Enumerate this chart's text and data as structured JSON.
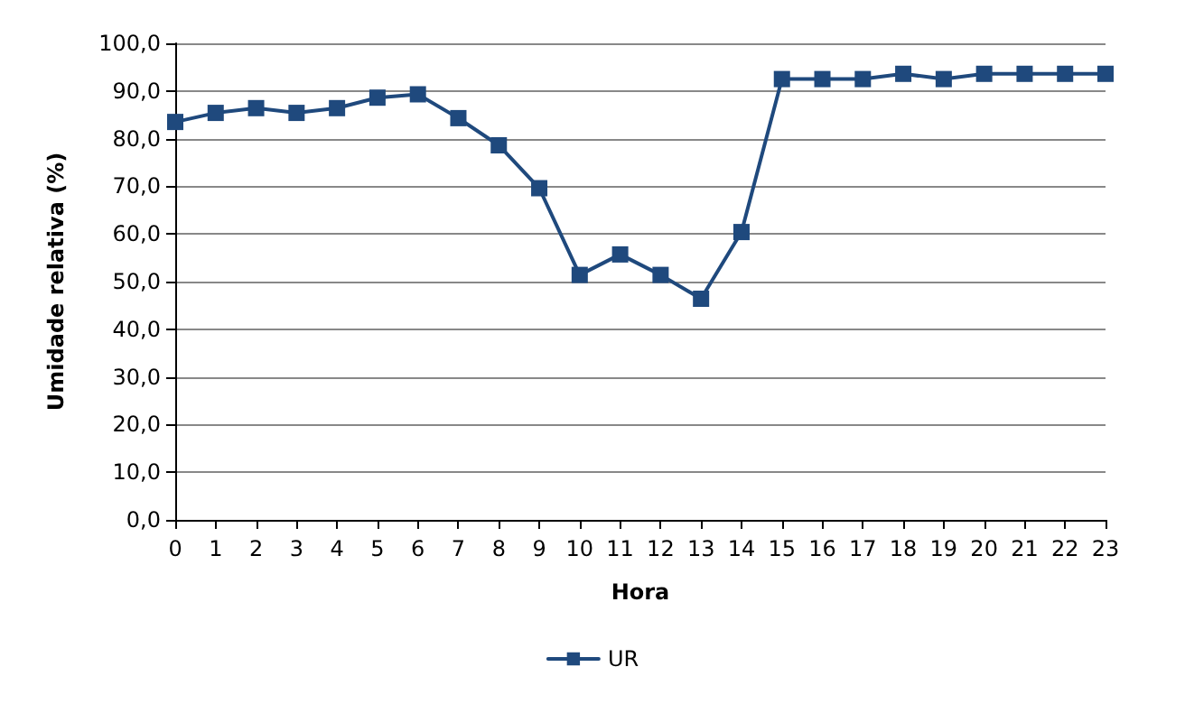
{
  "chart_data": {
    "type": "line",
    "xlabel": "Hora",
    "ylabel": "Umidade relativa (%)",
    "x": [
      0,
      1,
      2,
      3,
      4,
      5,
      6,
      7,
      8,
      9,
      10,
      11,
      12,
      13,
      14,
      15,
      16,
      17,
      18,
      19,
      20,
      21,
      22,
      23
    ],
    "series": [
      {
        "name": "UR",
        "color": "#1f497d",
        "values": [
          83.5,
          85.4,
          86.4,
          85.4,
          86.4,
          88.6,
          89.3,
          84.3,
          78.6,
          69.6,
          51.4,
          55.7,
          51.4,
          46.4,
          60.4,
          92.5,
          92.5,
          92.5,
          93.6,
          92.5,
          93.6,
          93.6,
          93.6,
          93.6
        ]
      }
    ],
    "xlim": [
      0,
      23
    ],
    "xticks": [
      0,
      1,
      2,
      3,
      4,
      5,
      6,
      7,
      8,
      9,
      10,
      11,
      12,
      13,
      14,
      15,
      16,
      17,
      18,
      19,
      20,
      21,
      22,
      23
    ],
    "ylim": [
      0,
      100
    ],
    "yticks": [
      {
        "value": 0,
        "label": "0,0"
      },
      {
        "value": 10,
        "label": "10,0"
      },
      {
        "value": 20,
        "label": "20,0"
      },
      {
        "value": 30,
        "label": "30,0"
      },
      {
        "value": 40,
        "label": "40,0"
      },
      {
        "value": 50,
        "label": "50,0"
      },
      {
        "value": 60,
        "label": "60,0"
      },
      {
        "value": 70,
        "label": "70,0"
      },
      {
        "value": 80,
        "label": "80,0"
      },
      {
        "value": 90,
        "label": "90,0"
      },
      {
        "value": 100,
        "label": "100,0"
      }
    ],
    "grid": "y",
    "legend": "bottom",
    "marker": "square",
    "line_style": "solid"
  }
}
